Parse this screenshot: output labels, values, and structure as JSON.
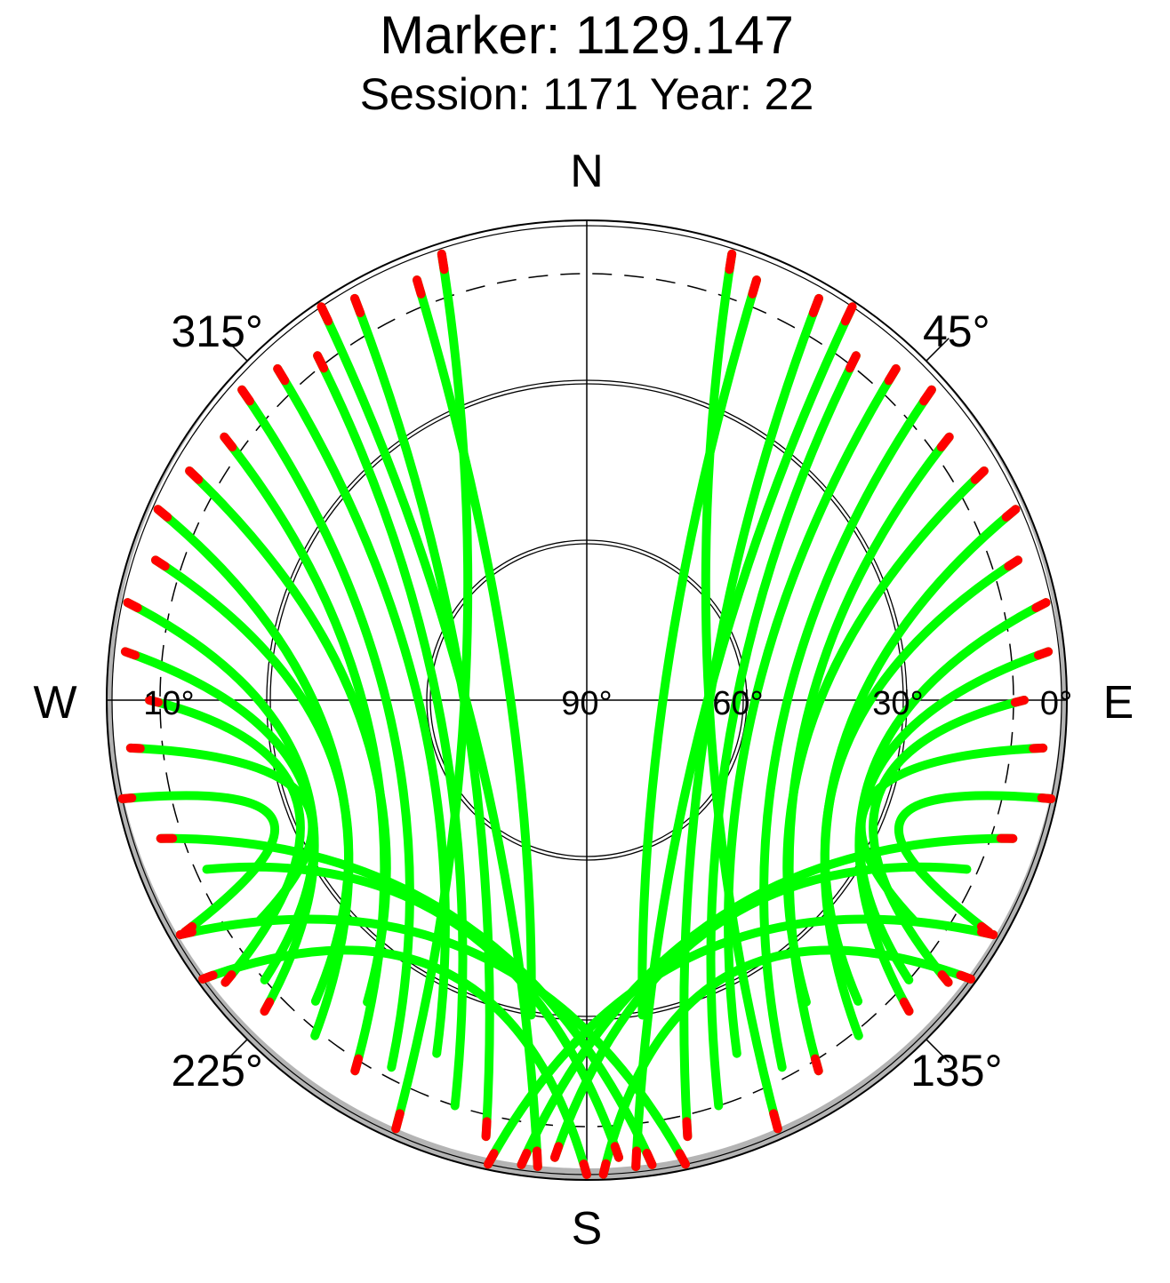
{
  "chart_data": {
    "type": "scatter",
    "projection": "polar-skyplot",
    "title": "Marker: 1129.147",
    "subtitle": "Session: 1171 Year: 22",
    "cardinals": {
      "north": "N",
      "east": "E",
      "south": "S",
      "west": "W"
    },
    "azimuth_labels": [
      {
        "azimuth": 315,
        "text": "315°"
      },
      {
        "azimuth": 45,
        "text": "45°"
      },
      {
        "azimuth": 225,
        "text": "225°"
      },
      {
        "azimuth": 135,
        "text": "135°"
      }
    ],
    "elevation_labels": [
      {
        "elevation": 10,
        "text": "10°"
      },
      {
        "elevation": 90,
        "text": "90°"
      },
      {
        "elevation": 60,
        "text": "60°"
      },
      {
        "elevation": 30,
        "text": "30°"
      },
      {
        "elevation": 0,
        "text": "0°"
      }
    ],
    "elevation_rings": [
      0,
      30,
      60
    ],
    "cutoff_elevation": 10,
    "colors": {
      "track": "#00ff00",
      "low_elevation": "#ff0000",
      "horizon_mask": "#b4b4b4",
      "grid": "#000000"
    },
    "tracks": [
      {
        "start": [
          338,
          5
        ],
        "end": [
          190,
          30
        ]
      },
      {
        "start": [
          330,
          3
        ],
        "end": [
          193,
          6
        ]
      },
      {
        "start": [
          322,
          8
        ],
        "end": [
          198,
          10
        ]
      },
      {
        "start": [
          317,
          5
        ],
        "end": [
          203,
          18
        ]
      },
      {
        "start": [
          312,
          3
        ],
        "end": [
          208,
          12
        ]
      },
      {
        "start": [
          306,
          6
        ],
        "end": [
          212,
          8
        ]
      },
      {
        "start": [
          300,
          4
        ],
        "end": [
          216,
          20
        ]
      },
      {
        "start": [
          294,
          2
        ],
        "end": [
          219,
          9
        ]
      },
      {
        "start": [
          288,
          5
        ],
        "end": [
          222,
          14
        ]
      },
      {
        "start": [
          282,
          2
        ],
        "end": [
          226,
          6
        ]
      },
      {
        "start": [
          276,
          3
        ],
        "end": [
          229,
          10
        ]
      },
      {
        "start": [
          270,
          8
        ],
        "end": [
          232,
          4
        ]
      },
      {
        "start": [
          264,
          4
        ],
        "end": [
          236,
          16
        ]
      },
      {
        "start": [
          258,
          1
        ],
        "end": [
          240,
          3
        ]
      },
      {
        "start": [
          252,
          6
        ],
        "end": [
          172,
          2
        ]
      },
      {
        "start": [
          246,
          12
        ],
        "end": [
          176,
          4
        ]
      },
      {
        "start": [
          240,
          2
        ],
        "end": [
          168,
          1
        ]
      },
      {
        "start": [
          234,
          1
        ],
        "end": [
          180,
          1
        ]
      },
      {
        "start": [
          342,
          2
        ],
        "end": [
          204,
          2
        ]
      },
      {
        "start": [
          326,
          1
        ],
        "end": [
          186,
          2
        ]
      },
      {
        "start": [
          22,
          5
        ],
        "end": [
          170,
          30
        ]
      },
      {
        "start": [
          30,
          3
        ],
        "end": [
          167,
          6
        ]
      },
      {
        "start": [
          38,
          8
        ],
        "end": [
          162,
          10
        ]
      },
      {
        "start": [
          43,
          5
        ],
        "end": [
          157,
          18
        ]
      },
      {
        "start": [
          48,
          3
        ],
        "end": [
          152,
          12
        ]
      },
      {
        "start": [
          54,
          6
        ],
        "end": [
          148,
          8
        ]
      },
      {
        "start": [
          60,
          4
        ],
        "end": [
          144,
          20
        ]
      },
      {
        "start": [
          66,
          2
        ],
        "end": [
          141,
          9
        ]
      },
      {
        "start": [
          72,
          5
        ],
        "end": [
          138,
          14
        ]
      },
      {
        "start": [
          78,
          2
        ],
        "end": [
          134,
          6
        ]
      },
      {
        "start": [
          84,
          3
        ],
        "end": [
          131,
          10
        ]
      },
      {
        "start": [
          90,
          8
        ],
        "end": [
          128,
          4
        ]
      },
      {
        "start": [
          96,
          4
        ],
        "end": [
          124,
          16
        ]
      },
      {
        "start": [
          102,
          1
        ],
        "end": [
          120,
          3
        ]
      },
      {
        "start": [
          108,
          6
        ],
        "end": [
          188,
          2
        ]
      },
      {
        "start": [
          114,
          12
        ],
        "end": [
          184,
          4
        ]
      },
      {
        "start": [
          120,
          2
        ],
        "end": [
          192,
          1
        ]
      },
      {
        "start": [
          126,
          1
        ],
        "end": [
          178,
          1
        ]
      },
      {
        "start": [
          18,
          2
        ],
        "end": [
          156,
          2
        ]
      },
      {
        "start": [
          34,
          1
        ],
        "end": [
          174,
          2
        ]
      }
    ]
  }
}
